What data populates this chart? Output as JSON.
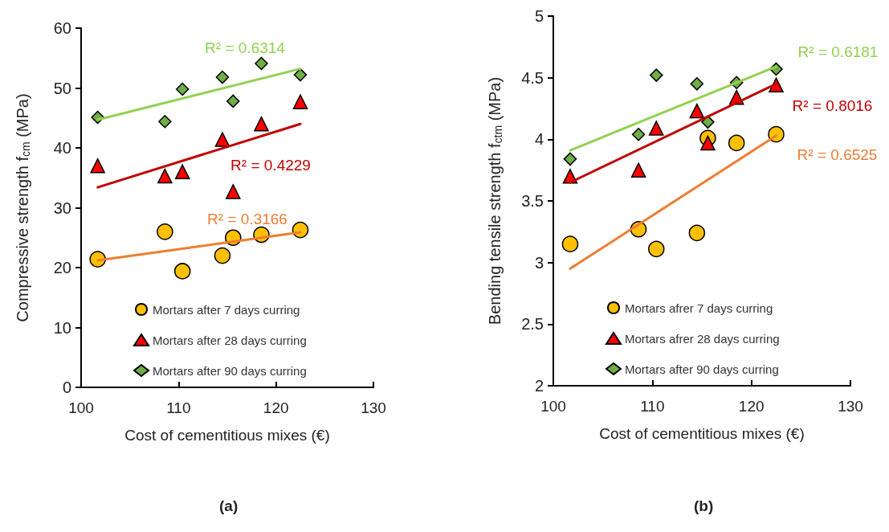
{
  "chart_data": [
    {
      "type": "scatter",
      "xlabel": "Cost of cementitious mixes (€)",
      "ylabel": "Compressive strength f$_{cm}$ (MPa)",
      "xlim": [
        100,
        130
      ],
      "xticks": [
        100,
        110,
        120,
        130
      ],
      "ylim": [
        0,
        60
      ],
      "yticks": [
        0,
        10,
        20,
        30,
        40,
        50,
        60
      ],
      "grid": false,
      "legend": "bottom right",
      "series": [
        {
          "name": "Mortars after 7 days curring",
          "color": "#ffc000",
          "marker": "circle",
          "x": [
            101.7,
            108.6,
            110.4,
            114.5,
            115.6,
            118.5,
            122.5
          ],
          "values": [
            21.4,
            26,
            19.4,
            22,
            25,
            25.5,
            26.3
          ]
        },
        {
          "name": "Mortars after 28 days curring",
          "color": "#ff0000",
          "marker": "triangle",
          "x": [
            101.7,
            108.6,
            110.4,
            114.5,
            115.6,
            118.5,
            122.5
          ],
          "values": [
            37,
            35.3,
            36,
            41.4,
            32.7,
            44,
            47.7
          ]
        },
        {
          "name": "Mortars after 90 days curring",
          "color": "#70ad47",
          "marker": "diamond",
          "x": [
            101.7,
            108.6,
            110.4,
            114.5,
            115.6,
            118.5,
            122.5
          ],
          "values": [
            45.1,
            44.4,
            49.8,
            51.8,
            47.8,
            54.1,
            52.2
          ]
        },
        {
          "type": "line",
          "color": "#ed7d31",
          "marker": "none",
          "x": [
            101.7,
            122.5
          ],
          "values": [
            21.2,
            25.9
          ]
        },
        {
          "type": "line",
          "color": "#c00000",
          "marker": "none",
          "x": [
            101.7,
            122.5
          ],
          "values": [
            33.4,
            44
          ]
        },
        {
          "type": "line",
          "color": "#92d050",
          "marker": "none",
          "x": [
            101.7,
            122.5
          ],
          "values": [
            44.7,
            53.2
          ]
        }
      ],
      "annotations": [
        "R² = 0.3166",
        "R² = 0.4229",
        "R² = 0.6314",
        "(a)"
      ]
    },
    {
      "type": "scatter",
      "xlabel": "Cost of cementitious mixes (€)",
      "ylabel": "Bending tensile strength f$_{ctm}$ (MPa)",
      "xlim": [
        100,
        130
      ],
      "xticks": [
        100,
        110,
        120,
        130
      ],
      "ylim": [
        2,
        5
      ],
      "yticks": [
        2,
        2.5,
        3,
        3.5,
        4,
        4.5,
        5
      ],
      "grid": false,
      "legend": "bottom right",
      "series": [
        {
          "name": "Mortars afrer 7 days curring",
          "color": "#ffc000",
          "marker": "circle",
          "x": [
            101.7,
            108.6,
            110.4,
            114.5,
            115.6,
            118.5,
            122.5
          ],
          "values": [
            3.15,
            3.27,
            3.11,
            3.24,
            4.01,
            3.97,
            4.04
          ]
        },
        {
          "name": "Mortars afrer 28 days curring",
          "color": "#ff0000",
          "marker": "triangle",
          "x": [
            101.7,
            108.6,
            110.4,
            114.5,
            115.6,
            118.5,
            122.5
          ],
          "values": [
            3.7,
            3.75,
            4.09,
            4.23,
            3.97,
            4.34,
            4.44
          ]
        },
        {
          "name": "Mortars after 90 days curring",
          "color": "#70ad47",
          "marker": "diamond",
          "x": [
            101.7,
            108.6,
            110.4,
            114.5,
            115.6,
            118.5,
            122.5
          ],
          "values": [
            3.84,
            4.04,
            4.52,
            4.45,
            4.14,
            4.46,
            4.57
          ]
        },
        {
          "type": "line",
          "color": "#ed7d31",
          "marker": "none",
          "x": [
            101.7,
            122.5
          ],
          "values": [
            2.95,
            4.03
          ]
        },
        {
          "type": "line",
          "color": "#c00000",
          "marker": "none",
          "x": [
            101.7,
            122.5
          ],
          "values": [
            3.65,
            4.45
          ]
        },
        {
          "type": "line",
          "color": "#92d050",
          "marker": "none",
          "x": [
            101.7,
            122.5
          ],
          "values": [
            3.91,
            4.59
          ]
        }
      ],
      "annotations": [
        "R² = 0.6525",
        "R² = 0.8016",
        "R² = 0.6181",
        "(b)"
      ]
    }
  ]
}
